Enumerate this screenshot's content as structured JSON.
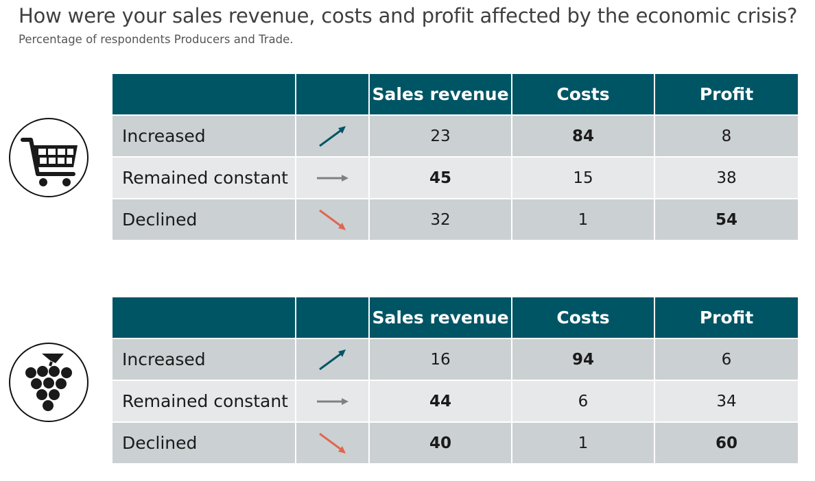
{
  "title": "How were your sales revenue, costs and profit affected by the economic crisis?",
  "subtitle": "Percentage of respondents Producers and Trade.",
  "colors": {
    "header": "#005565",
    "row_dark": "#cbd0d3",
    "row_light": "#e6e8ea",
    "arrow_up": "#005565",
    "arrow_flat": "#808080",
    "arrow_down": "#e06650"
  },
  "columns": [
    "",
    "",
    "Sales revenue",
    "Costs",
    "Profit"
  ],
  "tables": [
    {
      "icon": "shopping-cart-icon",
      "rows": [
        {
          "label": "Increased",
          "arrow": "arrow-up-right-icon",
          "sales": "23",
          "costs": "84",
          "profit": "8"
        },
        {
          "label": "Remained constant",
          "arrow": "arrow-right-icon",
          "sales": "45",
          "costs": "15",
          "profit": "38"
        },
        {
          "label": "Declined",
          "arrow": "arrow-down-right-icon",
          "sales": "32",
          "costs": "1",
          "profit": "54"
        }
      ]
    },
    {
      "icon": "grapes-icon",
      "rows": [
        {
          "label": "Increased",
          "arrow": "arrow-up-right-icon",
          "sales": "16",
          "costs": "94",
          "profit": "6"
        },
        {
          "label": "Remained constant",
          "arrow": "arrow-right-icon",
          "sales": "44",
          "costs": "6",
          "profit": "34"
        },
        {
          "label": "Declined",
          "arrow": "arrow-down-right-icon",
          "sales": "40",
          "costs": "1",
          "profit": "60"
        }
      ]
    }
  ]
}
